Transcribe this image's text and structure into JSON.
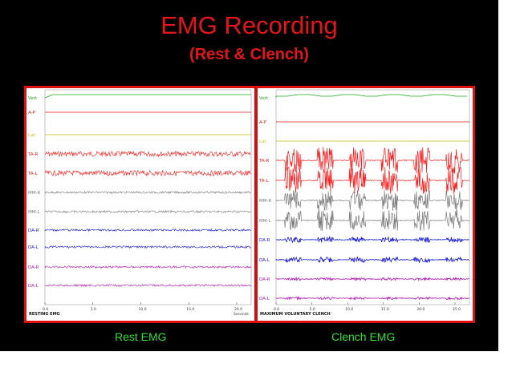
{
  "slide": {
    "title": "EMG Recording",
    "subtitle": "(Rest & Clench)",
    "left_caption": "Rest EMG",
    "right_caption": "Clench EMG",
    "colors": {
      "background": "#000000",
      "title": "#e5151b",
      "caption": "#2fe02f",
      "frame": "#e00f0f"
    }
  },
  "left_panel": {
    "footer_label": "RESTING EMG",
    "x_unit": "Seconds",
    "x_ticks": [
      "0.0",
      "5.0",
      "10.0",
      "15.0",
      "20.0"
    ],
    "channels": [
      {
        "label": "Vert",
        "color": "#1fa81f",
        "kind": "flat"
      },
      {
        "label": "A-P",
        "color": "#d81b1b",
        "kind": "flat"
      },
      {
        "label": "Lat",
        "color": "#c9c21a",
        "kind": "flat"
      },
      {
        "label": "TA-R",
        "color": "#ff1a1a",
        "kind": "noise"
      },
      {
        "label": "TA-L",
        "color": "#ff1a1a",
        "kind": "noise"
      },
      {
        "label": "MM-R",
        "color": "#7a7a7a",
        "kind": "noise"
      },
      {
        "label": "MM-L",
        "color": "#7a7a7a",
        "kind": "noise"
      },
      {
        "label": "DA-R",
        "color": "#1a1adb",
        "kind": "noise"
      },
      {
        "label": "DA-L",
        "color": "#1a1adb",
        "kind": "noise"
      },
      {
        "label": "DA-R",
        "color": "#b01ab0",
        "kind": "noise"
      },
      {
        "label": "DA-L",
        "color": "#b01ab0",
        "kind": "noise"
      }
    ]
  },
  "right_panel": {
    "footer_label": "MAXIMUM VOLUNTARY CLENCH",
    "x_ticks": [
      "0.0",
      "5.0",
      "10.0",
      "15.0",
      "20.0",
      "25.0"
    ],
    "channels": [
      {
        "label": "Vert",
        "color": "#1fa81f",
        "kind": "flat"
      },
      {
        "label": "A-P",
        "color": "#d81b1b",
        "kind": "flat"
      },
      {
        "label": "Lat",
        "color": "#c9c21a",
        "kind": "flat"
      },
      {
        "label": "TA-R",
        "color": "#ff1a1a",
        "kind": "burst"
      },
      {
        "label": "TA-L",
        "color": "#ff1a1a",
        "kind": "burst"
      },
      {
        "label": "MM-R",
        "color": "#7a7a7a",
        "kind": "burst"
      },
      {
        "label": "MM-L",
        "color": "#7a7a7a",
        "kind": "burst"
      },
      {
        "label": "DA-R",
        "color": "#1a1adb",
        "kind": "blip"
      },
      {
        "label": "DA-L",
        "color": "#1a1adb",
        "kind": "blip"
      },
      {
        "label": "DA-R",
        "color": "#b01ab0",
        "kind": "smallblip"
      },
      {
        "label": "DA-L",
        "color": "#b01ab0",
        "kind": "smallblip"
      }
    ],
    "clench_count": 6
  }
}
